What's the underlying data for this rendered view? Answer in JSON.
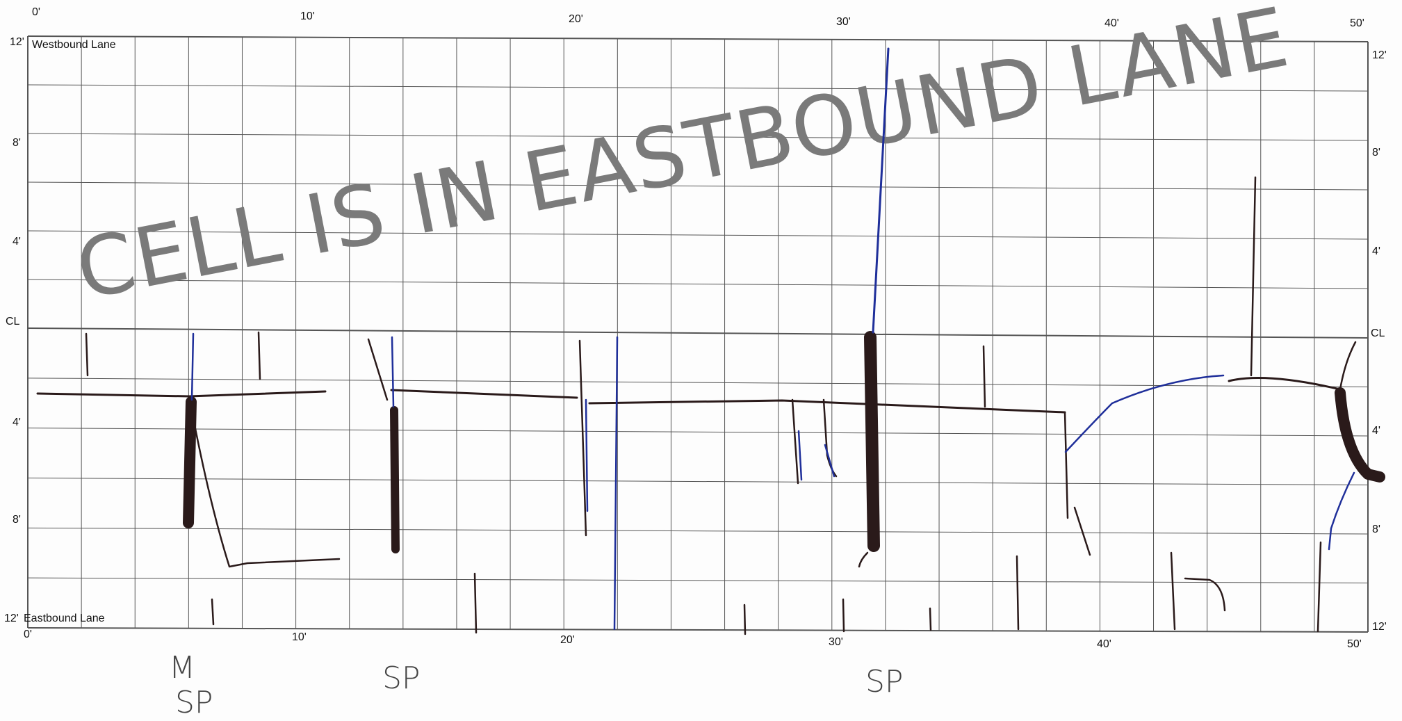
{
  "top_axis": {
    "ticks": [
      "0'",
      "10'",
      "20'",
      "30'",
      "40'",
      "50'"
    ]
  },
  "bottom_axis": {
    "ticks": [
      "0'",
      "10'",
      "20'",
      "30'",
      "40'",
      "50'"
    ]
  },
  "left_axis": {
    "ticks": [
      "12'",
      "8'",
      "4'",
      "CL",
      "4'",
      "8'",
      "12'"
    ]
  },
  "right_axis": {
    "ticks": [
      "12'",
      "8'",
      "4'",
      "CL",
      "4'",
      "8'",
      "12'"
    ]
  },
  "lanes": {
    "top_label": "Westbound Lane",
    "bottom_label": "Eastbound Lane"
  },
  "stamp_text": "CELL IS IN EASTBOUND LANE",
  "handwritten": {
    "label_1_line1": "M",
    "label_1_line2": "SP",
    "label_2": "SP",
    "label_3": "SP"
  },
  "colors": {
    "ink_black": "#2a1a1a",
    "ink_blue": "#1f2f9a",
    "grid": "#555555",
    "stamp": "#7a7a7a"
  }
}
